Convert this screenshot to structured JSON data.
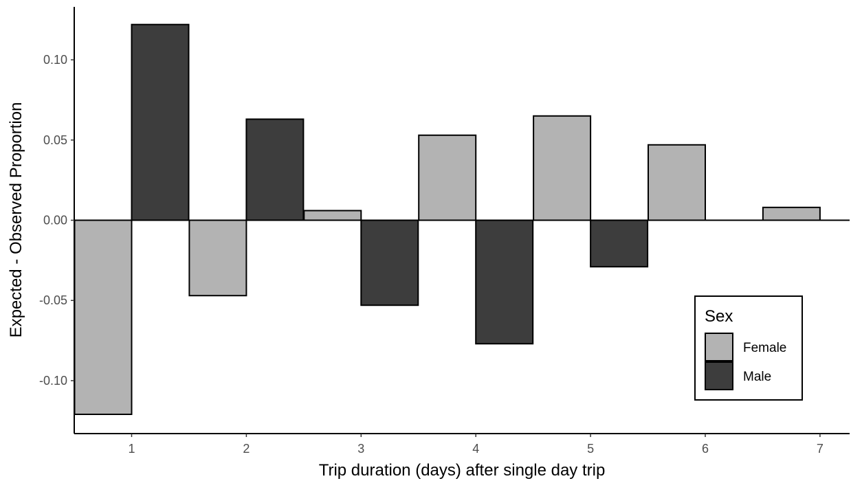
{
  "chart_data": {
    "type": "bar",
    "title": "",
    "xlabel": "Trip duration (days) after single day trip",
    "ylabel": "Expected - Observed Proportion",
    "categories": [
      "1",
      "2",
      "3",
      "4",
      "5",
      "6",
      "7"
    ],
    "series": [
      {
        "name": "Female",
        "color": "#b3b3b3",
        "values": [
          -0.121,
          -0.047,
          0.006,
          0.053,
          0.065,
          0.047,
          0.008
        ]
      },
      {
        "name": "Male",
        "color": "#3d3d3d",
        "values": [
          0.122,
          0.063,
          -0.053,
          -0.077,
          -0.029,
          null,
          null
        ]
      }
    ],
    "ylim": [
      -0.133,
      0.133
    ],
    "yticks": [
      -0.1,
      -0.05,
      0.0,
      0.05,
      0.1
    ],
    "ytick_labels": [
      "-0.10",
      "-0.05",
      "0.00",
      "0.05",
      "0.10"
    ],
    "grid": false,
    "legend": {
      "title": "Sex",
      "position": "bottom-right"
    }
  }
}
